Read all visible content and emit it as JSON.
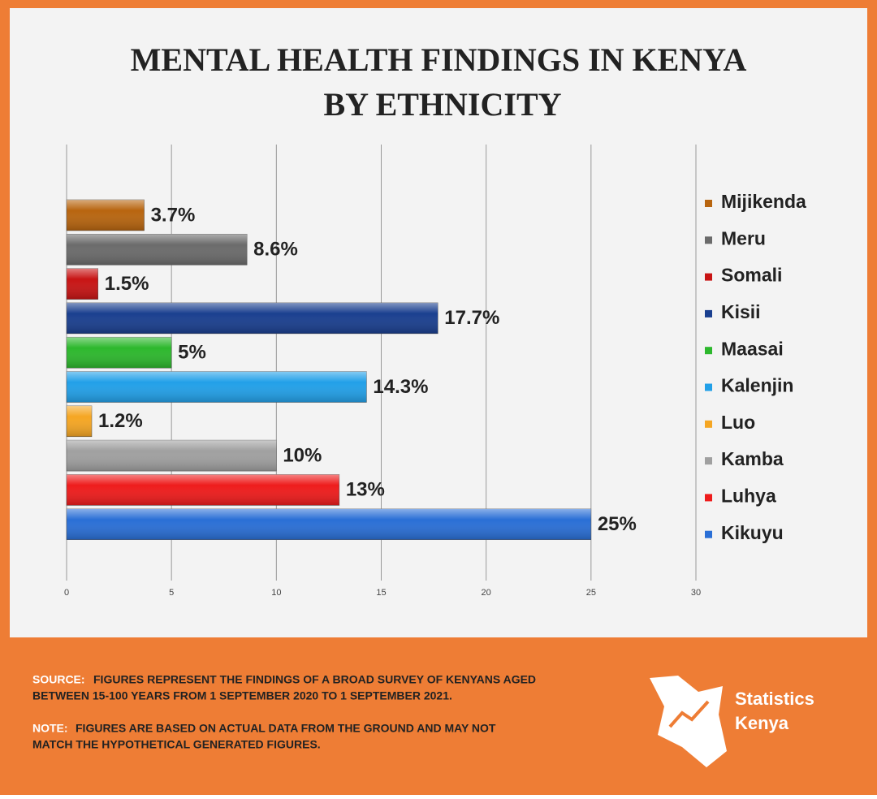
{
  "chart_data": {
    "type": "barh",
    "title": [
      "MENTAL HEALTH FINDINGS IN KENYA",
      "BY ETHNICITY"
    ],
    "categories": [
      "Mijikenda",
      "Meru",
      "Somali",
      "Kisii",
      "Maasai",
      "Kalenjin",
      "Luo",
      "Kamba",
      "Luhya",
      "Kikuyu"
    ],
    "values": [
      3.7,
      8.6,
      1.5,
      17.7,
      5,
      14.3,
      1.2,
      10,
      13,
      25
    ],
    "value_labels": [
      "3.7%",
      "8.6%",
      "1.5%",
      "17.7%",
      "5%",
      "14.3%",
      "1.2%",
      "10%",
      "13%",
      "25%"
    ],
    "colors": [
      "#b8650f",
      "#6b6b6b",
      "#c81414",
      "#1a3f8f",
      "#2db82d",
      "#22a0e8",
      "#f5a623",
      "#a0a0a0",
      "#ee1c1c",
      "#2a6fd6"
    ],
    "xlim": [
      0,
      30
    ],
    "xticks": [
      0,
      5,
      10,
      15,
      20,
      25,
      30
    ],
    "grid": true,
    "legend": "right"
  },
  "footer": {
    "source": {
      "label": "SOURCE:",
      "lines": [
        "FIGURES REPRESENT THE FINDINGS OF A BROAD SURVEY OF KENYANS AGED",
        "BETWEEN 15-100 YEARS FROM 1 SEPTEMBER 2020 TO 1 SEPTEMBER 2021."
      ]
    },
    "note": {
      "label": "NOTE:",
      "lines": [
        "FIGURES ARE BASED ON ACTUAL DATA FROM THE GROUND AND MAY NOT",
        "MATCH THE HYPOTHETICAL GENERATED FIGURES."
      ]
    },
    "logo": [
      "Statistics",
      "Kenya"
    ]
  }
}
